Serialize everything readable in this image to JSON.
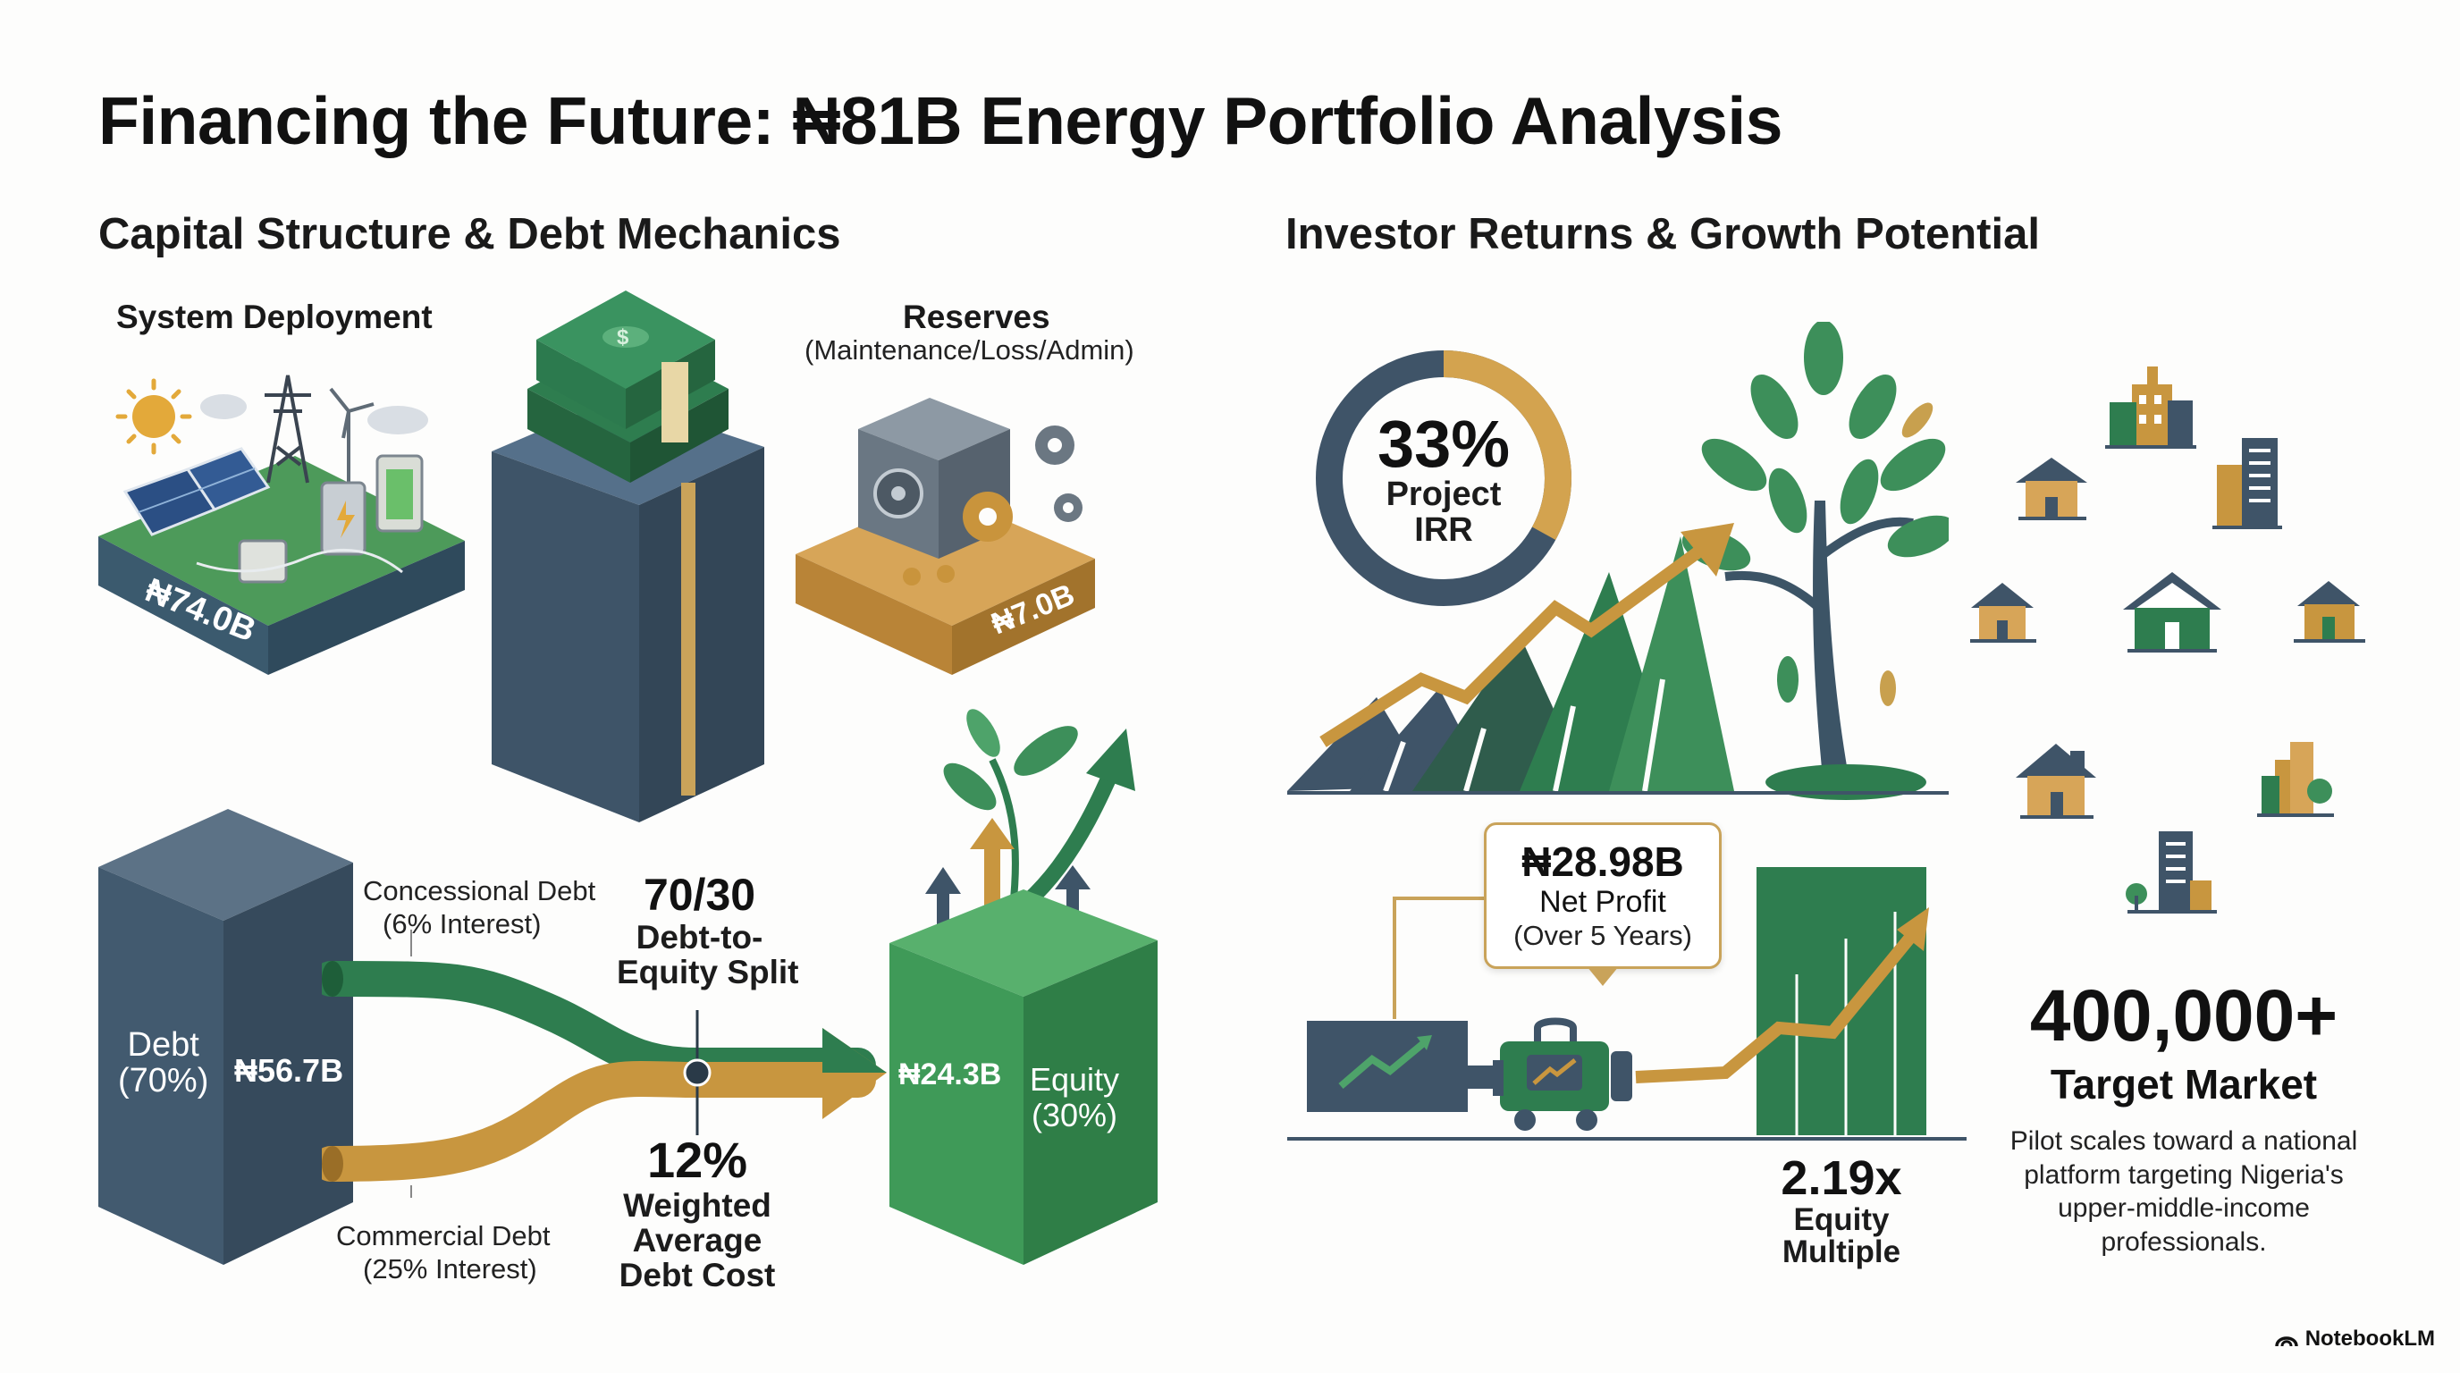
{
  "title": "Financing the Future: ₦81B Energy Portfolio Analysis",
  "left": {
    "heading": "Capital Structure & Debt Mechanics",
    "deployment": {
      "label": "System Deployment",
      "value": "₦74.0B"
    },
    "reserves": {
      "label": "Reserves",
      "sublabel": "(Maintenance/Loss/Admin)",
      "value": "₦7.0B"
    },
    "debt": {
      "label": "Debt",
      "pct": "(70%)",
      "value": "₦56.7B"
    },
    "concessional": {
      "label": "Concessional Debt",
      "rate": "(6% Interest)"
    },
    "commercial": {
      "label": "Commercial Debt",
      "rate": "(25% Interest)"
    },
    "split": {
      "value": "70/30",
      "line1": "Debt-to-",
      "line2": "Equity Split"
    },
    "cost": {
      "value": "12%",
      "line1": "Weighted",
      "line2": "Average",
      "line3": "Debt Cost"
    },
    "equity": {
      "label": "Equity",
      "pct": "(30%)",
      "value": "₦24.3B"
    }
  },
  "right": {
    "heading": "Investor Returns & Growth Potential",
    "irr": {
      "value": "33%",
      "line1": "Project",
      "line2": "IRR",
      "fill_fraction": 0.33
    },
    "profit": {
      "value": "₦28.98B",
      "label": "Net Profit",
      "period": "(Over 5 Years)"
    },
    "multiple": {
      "value": "2.19x",
      "line1": "Equity",
      "line2": "Multiple"
    },
    "market": {
      "value": "400,000+",
      "label": "Target Market",
      "description": "Pilot scales toward a national platform targeting Nigeria's upper-middle-income professionals."
    }
  },
  "colors": {
    "navy": "#3f5468",
    "green": "#2e7d4f",
    "gold": "#c89a4a",
    "lightgreen": "#4ea36a"
  },
  "brand": "NotebookLM"
}
